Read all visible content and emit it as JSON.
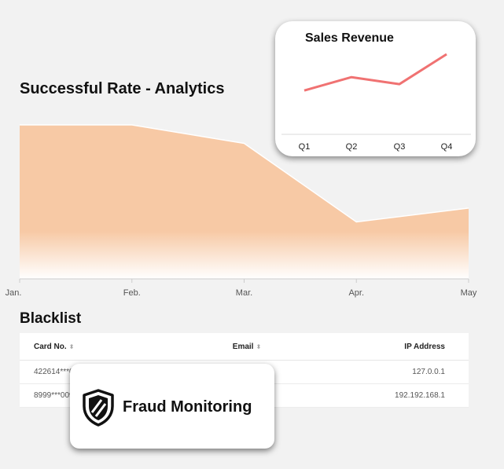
{
  "chart_data": [
    {
      "type": "area",
      "title": "Successful Rate - Analytics",
      "categories": [
        "Jan.",
        "Feb.",
        "Mar.",
        "Apr.",
        "May"
      ],
      "values": [
        100,
        100,
        88,
        37,
        46
      ],
      "ylim": [
        0,
        100
      ],
      "grid": false,
      "legend": "none",
      "colors": {
        "fill": "#f7c9a5",
        "line": "#ffffff",
        "axis": "#cccccc"
      }
    },
    {
      "type": "line",
      "title": "Sales Revenue",
      "categories": [
        "Q1",
        "Q2",
        "Q3",
        "Q4"
      ],
      "values": [
        32,
        57,
        44,
        100
      ],
      "ylim": [
        0,
        100
      ],
      "grid": false,
      "legend": "none",
      "colors": {
        "line": "#f07272",
        "axis": "#d8d8d8"
      }
    }
  ],
  "blacklist": {
    "title": "Blacklist",
    "columns": [
      "Card No.",
      "Email",
      "IP Address"
    ],
    "rows": [
      {
        "card": "422614***01",
        "email": "m",
        "ip": "127.0.0.1"
      },
      {
        "card": "8999***009",
        "email": "m",
        "ip": "192.192.168.1"
      }
    ]
  },
  "fraud": {
    "label": "Fraud Monitoring",
    "icon": "shield-icon"
  }
}
